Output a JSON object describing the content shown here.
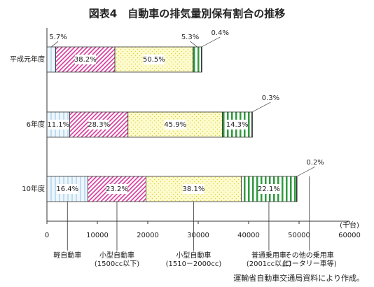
{
  "chart_data": {
    "type": "stacked-barh",
    "title": "図表4　自動車の排気量別保有割合の推移",
    "categories": [
      "平成元年度",
      "6年度",
      "10年度"
    ],
    "series": [
      {
        "name": "軽自動車",
        "color": "#8fc3e6",
        "values": [
          1750,
          4530,
          8130
        ],
        "share_labels": [
          "5.7%",
          "11.1%",
          "16.4%"
        ]
      },
      {
        "name": "小型自動車\n(1500cc以下)",
        "color": "#d8389a",
        "values": [
          11730,
          11550,
          11510
        ],
        "share_labels": [
          "38.2%",
          "28.3%",
          "23.2%"
        ]
      },
      {
        "name": "小型自動車\n(1510－2000cc)",
        "color": "#e0d640",
        "values": [
          15500,
          18730,
          18900
        ],
        "share_labels": [
          "50.5%",
          "45.9%",
          "38.1%"
        ]
      },
      {
        "name": "普通乗用車\n(2001cc以上)",
        "color": "#2f9a3e",
        "values": [
          1630,
          5830,
          10960
        ],
        "share_labels": [
          "5.3%",
          "14.3%",
          "22.1%"
        ]
      },
      {
        "name": "その他の乗用車\n(ロータリー車等)",
        "color": "#1f7a2c",
        "values": [
          120,
          120,
          100
        ],
        "share_labels": [
          "0.4%",
          "0.3%",
          "0.2%"
        ]
      }
    ],
    "xlim": [
      0,
      60000
    ],
    "xticks": [
      0,
      10000,
      20000,
      30000,
      40000,
      50000,
      60000
    ],
    "unit": "(千台)",
    "source": "運輸省自動車交通局資料により作成。"
  }
}
